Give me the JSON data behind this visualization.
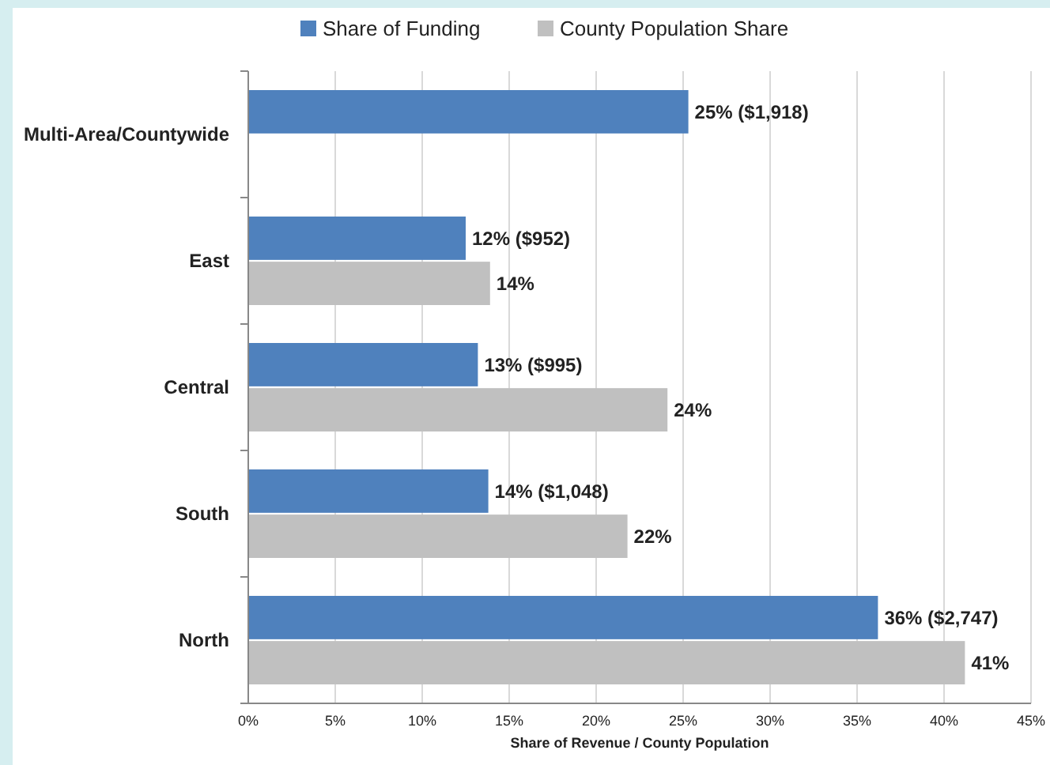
{
  "chart_data": {
    "type": "bar",
    "orientation": "horizontal",
    "categories": [
      "Multi-Area/Countywide",
      "East",
      "Central",
      "South",
      "North"
    ],
    "series": [
      {
        "name": "Share of Funding",
        "color": "#4f81bd",
        "values": [
          25.3,
          12.5,
          13.2,
          13.8,
          36.2
        ],
        "value_labels": [
          "25% ($1,918)",
          "12% ($952)",
          "13% ($995)",
          "14% ($1,048)",
          "36% ($2,747)"
        ]
      },
      {
        "name": "County Population Share",
        "color": "#c0c0c0",
        "values": [
          null,
          13.9,
          24.1,
          21.8,
          41.2
        ],
        "value_labels": [
          null,
          "14%",
          "24%",
          "22%",
          "41%"
        ]
      }
    ],
    "xlim": [
      0,
      45
    ],
    "xticks": [
      {
        "value": 0,
        "label": "0%"
      },
      {
        "value": 5,
        "label": "5%"
      },
      {
        "value": 10,
        "label": "10%"
      },
      {
        "value": 15,
        "label": "15%"
      },
      {
        "value": 20,
        "label": "20%"
      },
      {
        "value": 25,
        "label": "25%"
      },
      {
        "value": 30,
        "label": "30%"
      },
      {
        "value": 35,
        "label": "35%"
      },
      {
        "value": 40,
        "label": "40%"
      },
      {
        "value": 45,
        "label": "45%"
      }
    ],
    "xlabel": "Share of Revenue / County Population",
    "grid": "x",
    "legend": "top"
  }
}
